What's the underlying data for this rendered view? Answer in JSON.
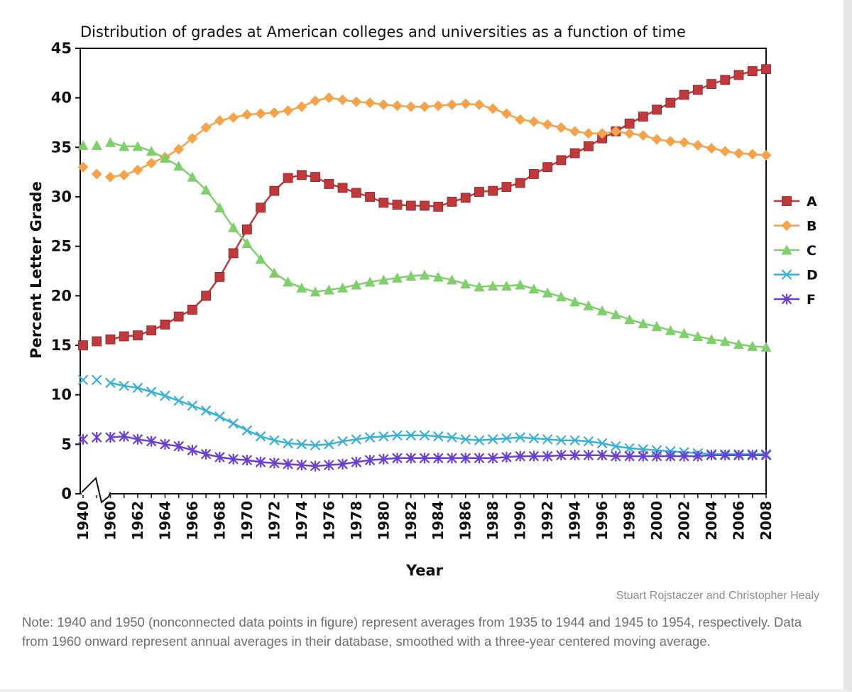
{
  "chart_data": {
    "type": "line",
    "title": "Distribution of grades at American colleges and universities as a function of time",
    "xlabel": "Year",
    "ylabel": "Percent Letter Grade",
    "ylim": [
      0,
      45
    ],
    "yticks": [
      "0",
      "5",
      "10",
      "15",
      "20",
      "25",
      "30",
      "35",
      "40",
      "45"
    ],
    "xtick_labels": [
      "1940",
      "1960",
      "1962",
      "1964",
      "1966",
      "1968",
      "1970",
      "1972",
      "1974",
      "1976",
      "1978",
      "1980",
      "1982",
      "1984",
      "1986",
      "1988",
      "1990",
      "1992",
      "1994",
      "1996",
      "1998",
      "2000",
      "2002",
      "2004",
      "2006",
      "2008"
    ],
    "axis_break": true,
    "grid": false,
    "legend_position": "right",
    "x": [
      "1940",
      "1950",
      "1960",
      "1961",
      "1962",
      "1963",
      "1964",
      "1965",
      "1966",
      "1967",
      "1968",
      "1969",
      "1970",
      "1971",
      "1972",
      "1973",
      "1974",
      "1975",
      "1976",
      "1977",
      "1978",
      "1979",
      "1980",
      "1981",
      "1982",
      "1983",
      "1984",
      "1985",
      "1986",
      "1987",
      "1988",
      "1989",
      "1990",
      "1991",
      "1992",
      "1993",
      "1994",
      "1995",
      "1996",
      "1997",
      "1998",
      "1999",
      "2000",
      "2001",
      "2002",
      "2003",
      "2004",
      "2005",
      "2006",
      "2007",
      "2008"
    ],
    "series": [
      {
        "name": "A",
        "color": "#c0393b",
        "marker": "square",
        "values": [
          15.0,
          15.4,
          15.6,
          15.9,
          16.0,
          16.5,
          17.1,
          17.9,
          18.6,
          20.0,
          21.9,
          24.3,
          26.7,
          28.9,
          30.6,
          31.9,
          32.2,
          32.0,
          31.3,
          30.9,
          30.4,
          30.0,
          29.4,
          29.2,
          29.1,
          29.1,
          29.0,
          29.5,
          29.9,
          30.5,
          30.6,
          31.0,
          31.4,
          32.3,
          33.0,
          33.7,
          34.4,
          35.1,
          35.9,
          36.6,
          37.4,
          38.1,
          38.8,
          39.5,
          40.3,
          40.8,
          41.4,
          41.8,
          42.3,
          42.7,
          42.9
        ]
      },
      {
        "name": "B",
        "color": "#f5a34a",
        "marker": "diamond",
        "values": [
          33.0,
          32.3,
          32.0,
          32.2,
          32.7,
          33.4,
          34.0,
          34.8,
          35.9,
          37.0,
          37.7,
          38.0,
          38.3,
          38.4,
          38.5,
          38.7,
          39.1,
          39.7,
          40.0,
          39.8,
          39.6,
          39.5,
          39.3,
          39.2,
          39.1,
          39.1,
          39.2,
          39.3,
          39.4,
          39.3,
          38.9,
          38.4,
          37.8,
          37.6,
          37.3,
          37.0,
          36.6,
          36.4,
          36.4,
          36.6,
          36.4,
          36.2,
          35.8,
          35.6,
          35.5,
          35.2,
          34.9,
          34.6,
          34.4,
          34.3,
          34.2
        ]
      },
      {
        "name": "C",
        "color": "#7fcf6b",
        "marker": "triangle",
        "values": [
          35.2,
          35.2,
          35.5,
          35.1,
          35.1,
          34.6,
          33.9,
          33.1,
          32.0,
          30.7,
          28.9,
          26.9,
          25.3,
          23.7,
          22.3,
          21.4,
          20.8,
          20.4,
          20.6,
          20.8,
          21.1,
          21.4,
          21.6,
          21.8,
          22.0,
          22.1,
          21.9,
          21.6,
          21.2,
          20.9,
          21.0,
          21.0,
          21.1,
          20.7,
          20.3,
          19.9,
          19.4,
          19.0,
          18.5,
          18.1,
          17.6,
          17.2,
          16.9,
          16.5,
          16.2,
          15.9,
          15.6,
          15.4,
          15.1,
          14.9,
          14.8
        ]
      },
      {
        "name": "D",
        "color": "#3ab0d6",
        "marker": "x",
        "values": [
          11.5,
          11.5,
          11.2,
          10.9,
          10.7,
          10.3,
          9.9,
          9.4,
          8.9,
          8.4,
          7.8,
          7.1,
          6.4,
          5.8,
          5.4,
          5.1,
          5.0,
          4.9,
          5.0,
          5.3,
          5.5,
          5.7,
          5.8,
          5.9,
          5.9,
          5.9,
          5.8,
          5.7,
          5.5,
          5.4,
          5.5,
          5.6,
          5.7,
          5.6,
          5.5,
          5.4,
          5.4,
          5.3,
          5.1,
          4.8,
          4.6,
          4.5,
          4.4,
          4.3,
          4.2,
          4.1,
          4.0,
          4.0,
          4.0,
          4.0,
          4.0
        ]
      },
      {
        "name": "F",
        "color": "#6b3fd6",
        "marker": "star",
        "values": [
          5.5,
          5.7,
          5.7,
          5.8,
          5.5,
          5.3,
          5.0,
          4.8,
          4.4,
          4.0,
          3.7,
          3.5,
          3.4,
          3.2,
          3.1,
          3.0,
          2.9,
          2.8,
          2.9,
          3.0,
          3.2,
          3.4,
          3.5,
          3.6,
          3.6,
          3.6,
          3.6,
          3.6,
          3.6,
          3.6,
          3.6,
          3.7,
          3.8,
          3.8,
          3.8,
          3.9,
          3.9,
          3.9,
          3.9,
          3.8,
          3.8,
          3.8,
          3.8,
          3.8,
          3.8,
          3.8,
          3.9,
          3.9,
          3.9,
          3.9,
          3.9
        ]
      }
    ]
  },
  "credit": "Stuart Rojstaczer and Christopher Healy",
  "note": "Note: 1940 and 1950 (nonconnected data points in figure) represent averages from 1935 to 1944 and 1945 to 1954, respectively. Data from 1960 onward represent annual averages in their database, smoothed with a three-year centered moving average."
}
